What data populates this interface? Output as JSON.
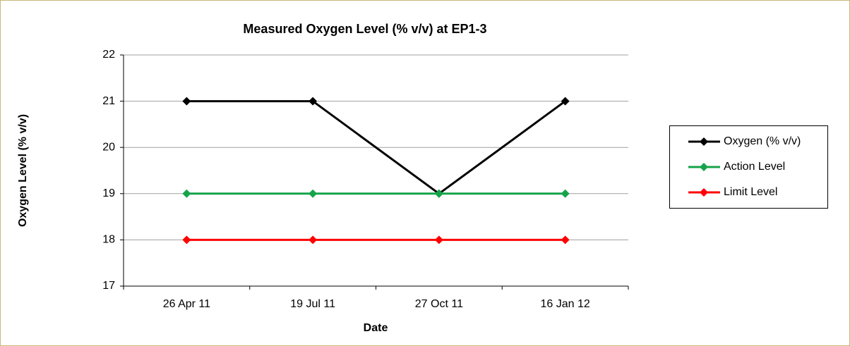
{
  "chart_data": {
    "type": "line",
    "title": "Measured Oxygen Level (% v/v) at EP1-3",
    "x_label": "Date",
    "y_label": "Oxygen Level (% v/v)",
    "categories": [
      "26 Apr 11",
      "19 Jul 11",
      "27 Oct 11",
      "16 Jan 12"
    ],
    "series": [
      {
        "name": "Oxygen (% v/v)",
        "color": "#000000",
        "values": [
          21,
          21,
          19,
          21
        ]
      },
      {
        "name": "Action Level",
        "color": "#16a34a",
        "values": [
          19,
          19,
          19,
          19
        ]
      },
      {
        "name": "Limit Level",
        "color": "#ff0000",
        "values": [
          18,
          18,
          18,
          18
        ]
      }
    ],
    "ylim": [
      17,
      22
    ],
    "yticks": [
      17,
      18,
      19,
      20,
      21,
      22
    ],
    "grid": true,
    "legend": "right"
  }
}
